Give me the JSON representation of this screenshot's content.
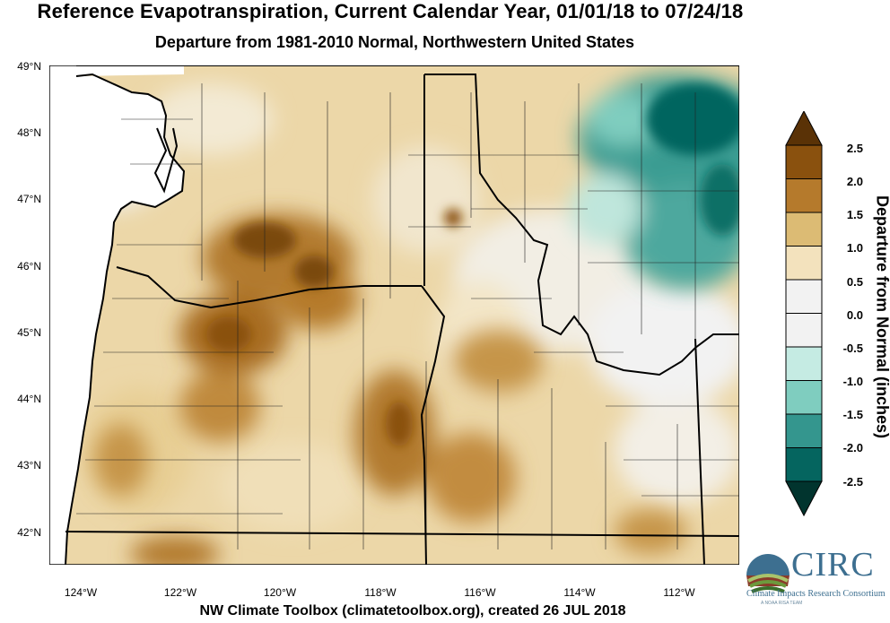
{
  "header": {
    "title": "Reference Evapotranspiration, Current Calendar Year, 01/01/18 to 07/24/18",
    "subtitle": "Departure from 1981-2010 Normal, Northwestern United States"
  },
  "axes": {
    "lat_labels": [
      "49°N",
      "48°N",
      "47°N",
      "46°N",
      "45°N",
      "44°N",
      "43°N",
      "42°N"
    ],
    "lon_labels": [
      "124°W",
      "122°W",
      "120°W",
      "118°W",
      "116°W",
      "114°W",
      "112°W"
    ]
  },
  "colorbar": {
    "title": "Departure from Normal (inches)",
    "ticks": [
      "2.5",
      "2.0",
      "1.5",
      "1.0",
      "0.5",
      "0.0",
      "-0.5",
      "-1.0",
      "-1.5",
      "-2.0",
      "-2.5"
    ],
    "colors": [
      "#5a3206",
      "#8a510e",
      "#b57a2c",
      "#dcbb74",
      "#f3e2bd",
      "#f2f2f2",
      "#f2f2f2",
      "#c5ebe3",
      "#7fcdbf",
      "#34968e",
      "#05655f",
      "#01342e"
    ]
  },
  "footer": {
    "credit": "NW Climate Toolbox (climatetoolbox.org), created 26 JUL 2018"
  },
  "logo": {
    "name": "CIRC",
    "tagline": "Climate Impacts Research Consortium",
    "subtagline": "A NOAA RISA TEAM"
  }
}
